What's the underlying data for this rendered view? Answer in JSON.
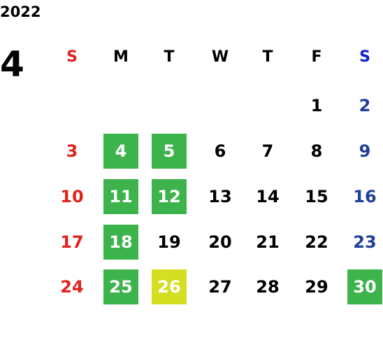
{
  "year": "2022",
  "month": 4,
  "weekdays": [
    "S",
    "M",
    "T",
    "W",
    "T",
    "F",
    "S"
  ],
  "weeks": [
    [
      null,
      null,
      null,
      null,
      null,
      1,
      2
    ],
    [
      3,
      {
        "day": 4,
        "highlight": "green"
      },
      {
        "day": 5,
        "highlight": "green"
      },
      6,
      7,
      8,
      9
    ],
    [
      10,
      {
        "day": 11,
        "highlight": "green"
      },
      {
        "day": 12,
        "highlight": "green"
      },
      13,
      14,
      15,
      16
    ],
    [
      17,
      {
        "day": 18,
        "highlight": "green"
      },
      19,
      20,
      21,
      22,
      23
    ],
    [
      24,
      {
        "day": 25,
        "highlight": "green"
      },
      {
        "day": 26,
        "highlight": "yellow"
      },
      27,
      28,
      29,
      {
        "day": 30,
        "highlight": "green"
      }
    ]
  ],
  "highlight_colors": {
    "green": "#3cb44b",
    "yellow": "#d5df22"
  }
}
